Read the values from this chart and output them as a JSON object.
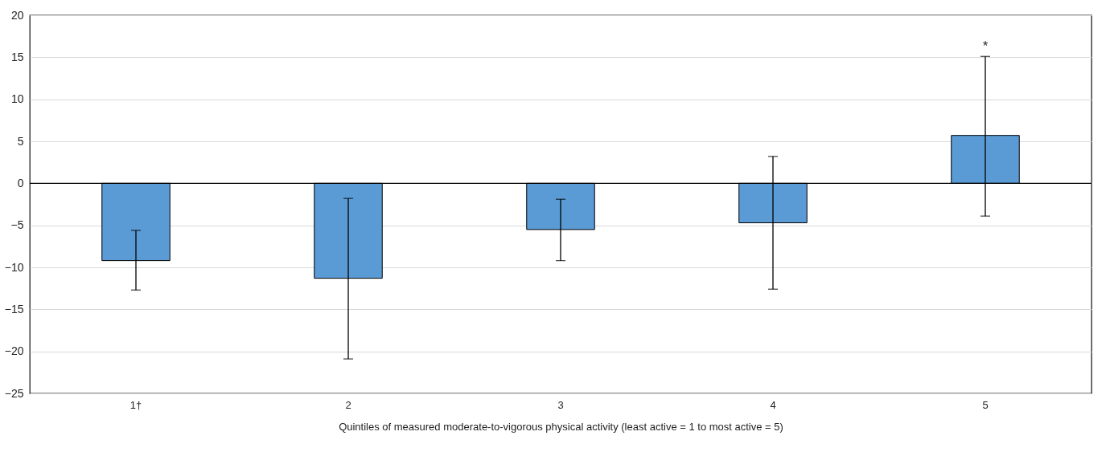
{
  "chart_data": {
    "type": "bar",
    "categories": [
      "1†",
      "2",
      "3",
      "4",
      "5"
    ],
    "values": [
      -9.2,
      -11.3,
      -5.5,
      -4.7,
      5.7
    ],
    "errors": [
      [
        -12.7,
        -5.6
      ],
      [
        -20.9,
        -1.8
      ],
      [
        -9.2,
        -1.9
      ],
      [
        -12.6,
        3.2
      ],
      [
        -3.9,
        15.1
      ]
    ],
    "color": "#5b9bd5",
    "xlabel": "Quintiles of measured moderate-to-vigorous physical activity (least active = 1 to most active = 5)",
    "ylim": [
      -25,
      20
    ],
    "yticks": [
      -25,
      -20,
      -15,
      -10,
      -5,
      0,
      5,
      10,
      15,
      20
    ],
    "grid": "y",
    "annotations": [
      {
        "text": "*",
        "x": "5",
        "y": 15.1
      }
    ]
  }
}
